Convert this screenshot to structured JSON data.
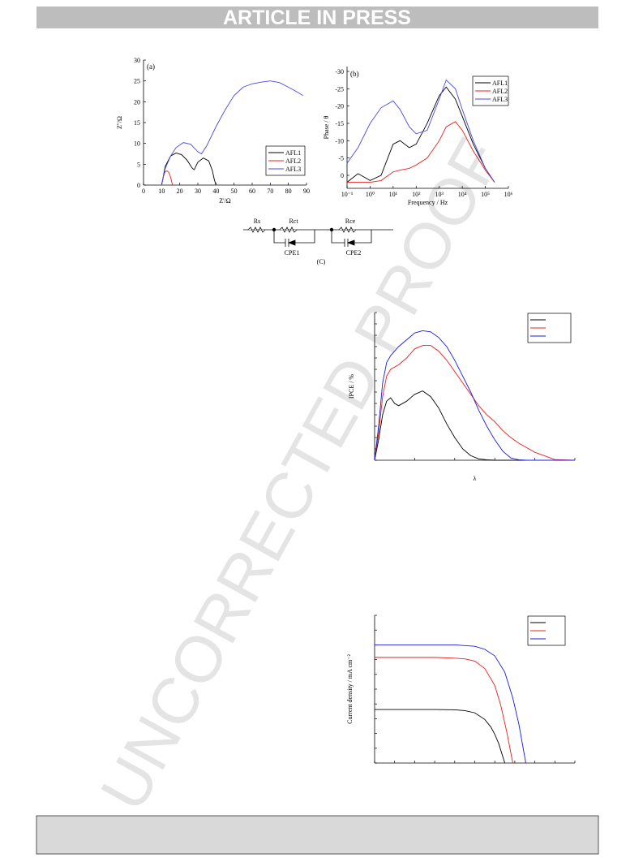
{
  "header": {
    "title": "ARTICLE IN PRESS"
  },
  "watermark": "UNCORRECTED PROOF",
  "circuit": {
    "rs": "Rs",
    "rct": "Rct",
    "rce": "Rce",
    "cpe1": "CPE1",
    "cpe2": "CPE2",
    "caption": "(C)"
  },
  "chart_data": [
    {
      "type": "line",
      "label": "(a)",
      "x_label": "Z'/Ω",
      "y_label": "Z''/Ω",
      "xlim": [
        0,
        90
      ],
      "ylim": [
        0,
        30
      ],
      "xticks": [
        0,
        10,
        20,
        30,
        40,
        50,
        60,
        70,
        80,
        90
      ],
      "yticks": [
        0,
        5,
        10,
        15,
        20,
        25,
        30
      ],
      "tick_labels": true,
      "legend": "right",
      "series": [
        {
          "name": "AFL1",
          "color": "#000000",
          "x": [
            10,
            12,
            15,
            18,
            21,
            24,
            27,
            28,
            30,
            33,
            36,
            38,
            39,
            40
          ],
          "values": [
            0,
            4.5,
            7,
            7.7,
            7.3,
            6,
            4,
            3.7,
            5.5,
            6.5,
            5.8,
            3.5,
            1.5,
            0
          ]
        },
        {
          "name": "AFL2",
          "color": "#e8201c",
          "x": [
            10,
            11,
            12,
            13,
            14,
            15,
            16
          ],
          "values": [
            0,
            2.2,
            3.2,
            3.4,
            3,
            1.8,
            0
          ]
        },
        {
          "name": "AFL3",
          "color": "#4a4ae0",
          "x": [
            10,
            12,
            15,
            18,
            22,
            26,
            30,
            32,
            35,
            40,
            45,
            50,
            55,
            60,
            65,
            70,
            75,
            80,
            85,
            88
          ],
          "values": [
            0,
            4,
            7,
            9,
            10.2,
            9.8,
            8,
            7.5,
            9.5,
            14,
            18,
            21.5,
            23.5,
            24.3,
            24.7,
            25,
            24.6,
            23.5,
            22.3,
            21.5
          ]
        }
      ]
    },
    {
      "type": "line",
      "label": "(b)",
      "x_label": "Frequency / Hz",
      "y_label": "Phase / θ",
      "log_x": true,
      "xlim": [
        0.1,
        1000000
      ],
      "ylim": [
        3.75,
        -31.4
      ],
      "xticks": [
        {
          "value": 0.1,
          "label": "10⁻¹"
        },
        {
          "value": 1,
          "label": "10⁰"
        },
        {
          "value": 10,
          "label": "10¹"
        },
        {
          "value": 100,
          "label": "10²"
        },
        {
          "value": 1000,
          "label": "10³"
        },
        {
          "value": 10000,
          "label": "10⁴"
        },
        {
          "value": 100000,
          "label": "10⁵"
        },
        {
          "value": 1000000,
          "label": "10⁶"
        }
      ],
      "yticks": [
        -30,
        -25,
        -20,
        -15,
        -10,
        -5,
        0
      ],
      "tick_labels": true,
      "legend": "top-right",
      "x": [
        0.1,
        0.3,
        1,
        3,
        10,
        20,
        50,
        100,
        300,
        1000,
        2000,
        5000,
        10000,
        30000,
        100000,
        250000
      ],
      "series": [
        {
          "name": "AFL1",
          "color": "#000000",
          "values": [
            2,
            -0.5,
            1.5,
            0,
            -9,
            -10,
            -8,
            -9,
            -15,
            -23,
            -25.5,
            -22,
            -17,
            -9,
            -2,
            2
          ]
        },
        {
          "name": "AFL2",
          "color": "#e8201c",
          "values": [
            2,
            2,
            2,
            1.5,
            -1,
            -1.5,
            -2,
            -3,
            -5,
            -10,
            -14,
            -15.5,
            -13,
            -7,
            -1.5,
            2
          ]
        },
        {
          "name": "AFL3",
          "color": "#4a4ae0",
          "values": [
            -3.5,
            -8,
            -15,
            -19.5,
            -21.5,
            -19,
            -14,
            -12,
            -13,
            -22,
            -27.5,
            -25,
            -19,
            -10,
            -2,
            2
          ]
        }
      ]
    },
    {
      "type": "line",
      "x_label": "λ",
      "y_label": "IPCE / %",
      "xlim": [
        300,
        800
      ],
      "ylim": [
        0,
        65
      ],
      "xticks": [
        300,
        400,
        500,
        600,
        700,
        800
      ],
      "yticks": [
        0,
        5,
        10,
        15,
        20,
        25,
        30,
        35,
        40,
        45,
        50,
        55,
        60,
        65
      ],
      "tick_labels": false,
      "legend": "top-right",
      "x": [
        300,
        310,
        320,
        330,
        340,
        350,
        360,
        380,
        400,
        420,
        440,
        460,
        480,
        500,
        520,
        540,
        560,
        580,
        600,
        620,
        640,
        660,
        680,
        700,
        750,
        800
      ],
      "series": [
        {
          "color": "#000000",
          "values": [
            0,
            9,
            20,
            26,
            27.5,
            25,
            24,
            26,
            29,
            30.5,
            28,
            23,
            16,
            10,
            5,
            2,
            0.6,
            0.2,
            0,
            0,
            0,
            0,
            0,
            0,
            0,
            0
          ]
        },
        {
          "color": "#e8201c",
          "values": [
            0,
            12,
            28,
            37,
            40,
            41,
            42,
            45,
            49,
            50.5,
            50.5,
            48,
            44,
            39,
            34,
            29,
            24,
            20,
            17,
            13,
            10,
            7.5,
            5.5,
            3.5,
            0.3,
            0
          ]
        },
        {
          "color": "#1a1ae0",
          "values": [
            0,
            15,
            34,
            43,
            46,
            48,
            50,
            53,
            56,
            57,
            56.5,
            54,
            50,
            44,
            37,
            30,
            22,
            15,
            9,
            4,
            1,
            0.2,
            0,
            0,
            0,
            0
          ]
        }
      ]
    },
    {
      "type": "line",
      "y_label": "Current density / mA cm⁻²",
      "xlim": [
        0,
        1
      ],
      "ylim": [
        0,
        20
      ],
      "xticks": [
        0,
        0.1,
        0.2,
        0.3,
        0.4,
        0.5,
        0.6,
        0.7,
        0.8,
        0.9,
        1
      ],
      "yticks": [
        0,
        2,
        4,
        6,
        8,
        10,
        12,
        14,
        16,
        18,
        20
      ],
      "tick_labels": false,
      "legend": "top-right",
      "series": [
        {
          "color": "#000000",
          "x": [
            0,
            0.1,
            0.2,
            0.3,
            0.4,
            0.45,
            0.5,
            0.55,
            0.58,
            0.6,
            0.62,
            0.65
          ],
          "values": [
            7.25,
            7.25,
            7.25,
            7.25,
            7.2,
            7.1,
            6.8,
            5.9,
            4.9,
            3.9,
            2.6,
            0
          ]
        },
        {
          "color": "#e8201c",
          "x": [
            0,
            0.1,
            0.2,
            0.3,
            0.4,
            0.45,
            0.5,
            0.55,
            0.6,
            0.63,
            0.66,
            0.69
          ],
          "values": [
            14.3,
            14.3,
            14.3,
            14.3,
            14.2,
            14.1,
            13.8,
            12.8,
            10.5,
            7.8,
            4.2,
            0
          ]
        },
        {
          "color": "#1a1ae0",
          "x": [
            0,
            0.1,
            0.2,
            0.3,
            0.4,
            0.45,
            0.5,
            0.55,
            0.6,
            0.65,
            0.69,
            0.72,
            0.755
          ],
          "values": [
            16,
            16,
            16,
            16,
            16,
            15.9,
            15.8,
            15.4,
            14.5,
            12.3,
            8.8,
            5.3,
            0
          ]
        }
      ]
    }
  ]
}
